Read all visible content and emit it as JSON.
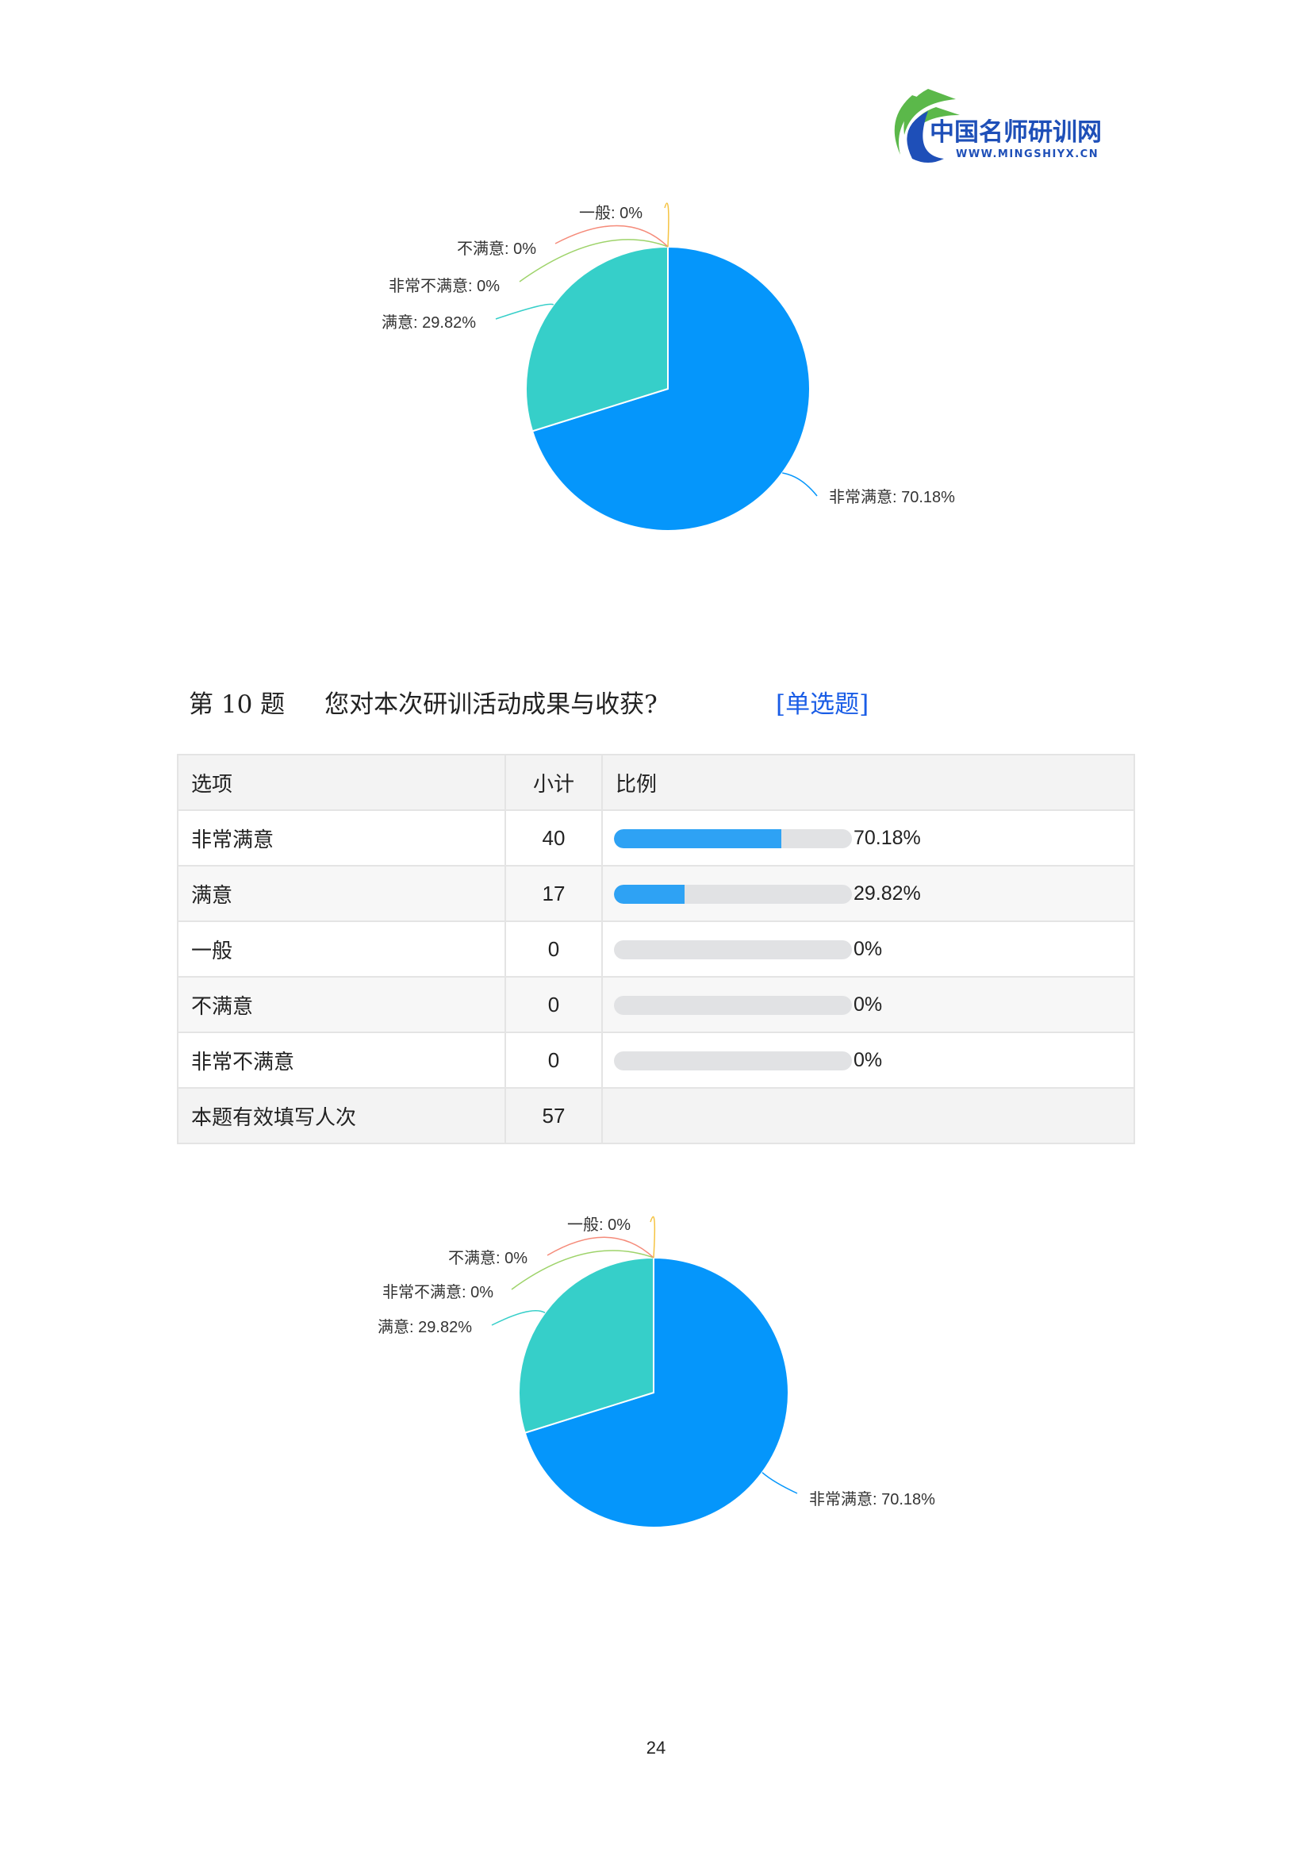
{
  "logo": {
    "name": "中国名师研训网",
    "url_text": "WWW.MINGSHIYX.CN"
  },
  "colors": {
    "very_satisfied": "#0596fb",
    "satisfied": "#36cfc9",
    "general": "#f5c342",
    "unsatisfied": "#f58b7a",
    "very_unsatisfied": "#9ed36a",
    "bar_fill": "#2ea2f4",
    "bar_track": "#e1e2e4",
    "link": "#1a5de6"
  },
  "chart_data": [
    {
      "type": "pie",
      "slices": [
        {
          "label": "非常满意",
          "value": 70.18,
          "text": "非常满意: 70.18%"
        },
        {
          "label": "满意",
          "value": 29.82,
          "text": "满意: 29.82%"
        },
        {
          "label": "非常不满意",
          "value": 0,
          "text": "非常不满意: 0%"
        },
        {
          "label": "不满意",
          "value": 0,
          "text": "不满意: 0%"
        },
        {
          "label": "一般",
          "value": 0,
          "text": "一般: 0%"
        }
      ]
    },
    {
      "type": "pie",
      "slices": [
        {
          "label": "非常满意",
          "value": 70.18,
          "text": "非常满意: 70.18%"
        },
        {
          "label": "满意",
          "value": 29.82,
          "text": "满意: 29.82%"
        },
        {
          "label": "非常不满意",
          "value": 0,
          "text": "非常不满意: 0%"
        },
        {
          "label": "不满意",
          "value": 0,
          "text": "不满意: 0%"
        },
        {
          "label": "一般",
          "value": 0,
          "text": "一般: 0%"
        }
      ]
    }
  ],
  "question": {
    "number": "第 10 题",
    "text": "您对本次研训活动成果与收获?",
    "type": "[单选题]"
  },
  "table": {
    "headers": [
      "选项",
      "小计",
      "比例"
    ],
    "rows": [
      {
        "option": "非常满意",
        "count": "40",
        "percent": "70.18%",
        "fraction": 0.7018
      },
      {
        "option": "满意",
        "count": "17",
        "percent": "29.82%",
        "fraction": 0.2982
      },
      {
        "option": "一般",
        "count": "0",
        "percent": "0%",
        "fraction": 0
      },
      {
        "option": "不满意",
        "count": "0",
        "percent": "0%",
        "fraction": 0
      },
      {
        "option": "非常不满意",
        "count": "0",
        "percent": "0%",
        "fraction": 0
      }
    ],
    "footer": {
      "label": "本题有效填写人次",
      "count": "57"
    }
  },
  "page_number": "24"
}
